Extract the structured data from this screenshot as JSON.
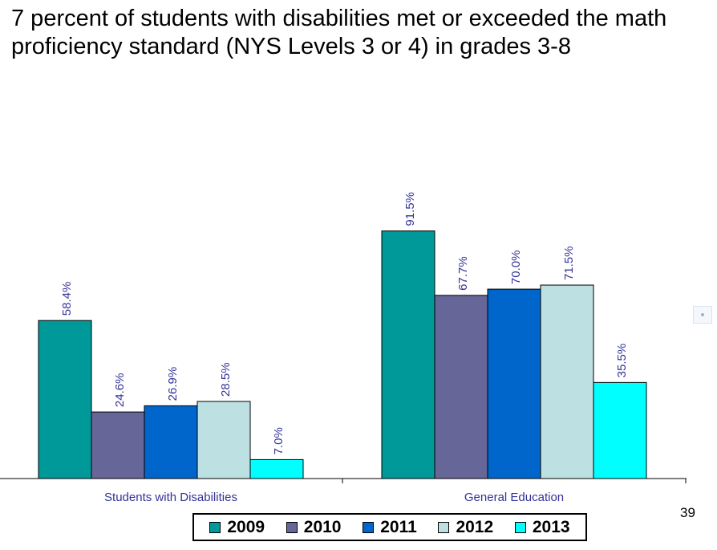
{
  "page": {
    "number": "39"
  },
  "chart_data": {
    "type": "bar",
    "title": "7 percent of students with disabilities met or exceeded the math proficiency standard (NYS Levels 3 or 4) in grades 3-8",
    "categories": [
      "Students with Disabilities",
      "General Education"
    ],
    "series": [
      {
        "name": "2009",
        "color": "#009999",
        "values": [
          58.4,
          91.5
        ],
        "labels": [
          "58.4%",
          "91.5%"
        ]
      },
      {
        "name": "2010",
        "color": "#666699",
        "values": [
          24.6,
          67.7
        ],
        "labels": [
          "24.6%",
          "67.7%"
        ]
      },
      {
        "name": "2011",
        "color": "#0066cc",
        "values": [
          26.9,
          70.0
        ],
        "labels": [
          "26.9%",
          "70.0%"
        ]
      },
      {
        "name": "2012",
        "color": "#bde0e3",
        "values": [
          28.5,
          71.5
        ],
        "labels": [
          "28.5%",
          "71.5%"
        ]
      },
      {
        "name": "2013",
        "color": "#00ffff",
        "values": [
          7.0,
          35.5
        ],
        "labels": [
          "7.0%",
          "35.5%"
        ]
      }
    ],
    "ylim": [
      0,
      100
    ],
    "grid": false,
    "legend_position": "bottom",
    "data_label_color": "#333399"
  }
}
